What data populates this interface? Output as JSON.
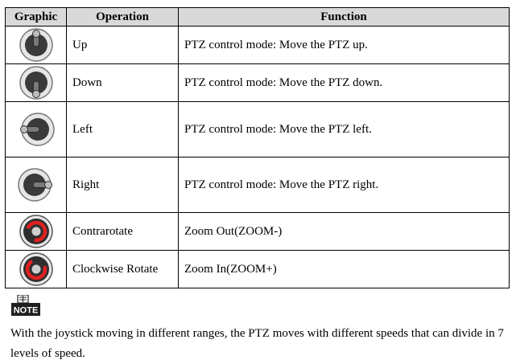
{
  "table": {
    "headers": {
      "graphic": "Graphic",
      "operation": "Operation",
      "function": "Function"
    },
    "rows": [
      {
        "operation": "Up",
        "function": "PTZ control mode: Move the PTZ up.",
        "icon": "joystick-up-icon"
      },
      {
        "operation": "Down",
        "function": "PTZ control mode: Move the PTZ down.",
        "icon": "joystick-down-icon"
      },
      {
        "operation": "Left",
        "function": "PTZ control mode: Move the PTZ left.",
        "icon": "joystick-left-icon"
      },
      {
        "operation": "Right",
        "function": "PTZ control mode: Move the PTZ right.",
        "icon": "joystick-right-icon"
      },
      {
        "operation": "Contrarotate",
        "function": "Zoom Out(ZOOM-)",
        "icon": "rotate-counterclockwise-icon"
      },
      {
        "operation": "Clockwise Rotate",
        "function": "Zoom In(ZOOM+)",
        "icon": "rotate-clockwise-icon"
      }
    ]
  },
  "note": {
    "icon_label": "NOTE",
    "text": "With the joystick moving in different ranges, the PTZ moves with different speeds that can divide in 7 levels of speed."
  },
  "colors": {
    "header_bg": "#d9d9d9",
    "rotate_accent": "#e02020",
    "joystick_body": "#3a3a3a"
  }
}
